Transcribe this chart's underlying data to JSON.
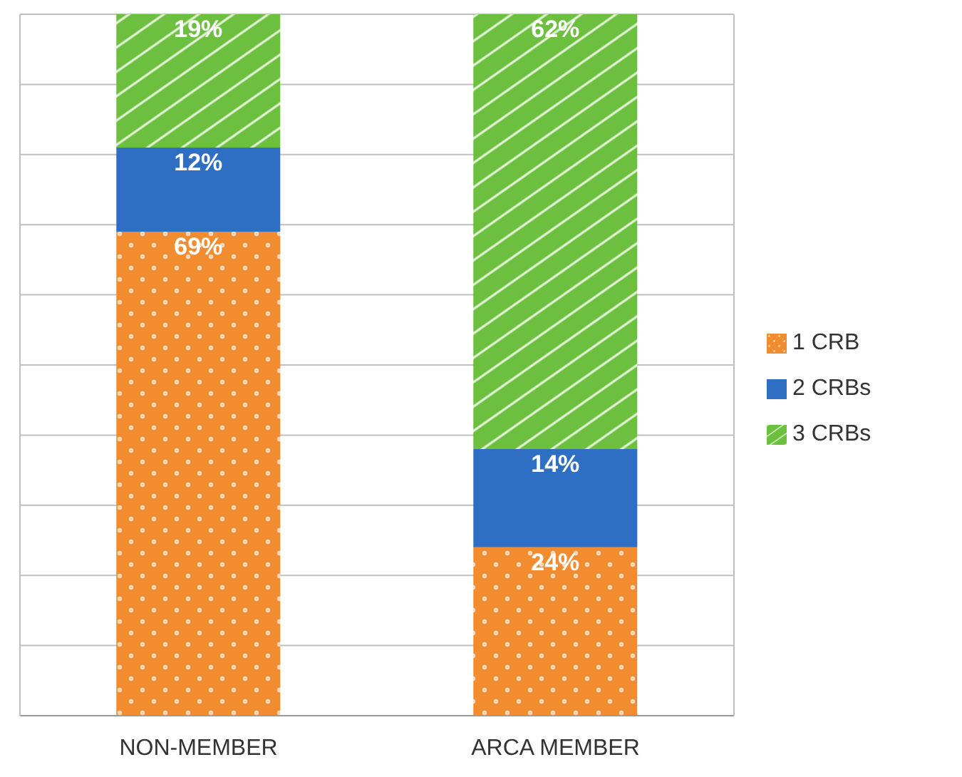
{
  "chart_data": {
    "type": "bar",
    "stacked": true,
    "categories": [
      "NON-MEMBER",
      "ARCA MEMBER"
    ],
    "series": [
      {
        "name": "1 CRB",
        "color": "#f28c30",
        "values": [
          69,
          24
        ],
        "value_labels": [
          "69%",
          "24%"
        ]
      },
      {
        "name": "2 CRBs",
        "color": "#2e6fc4",
        "values": [
          12,
          14
        ],
        "value_labels": [
          "12%",
          "14%"
        ]
      },
      {
        "name": "3 CRBs",
        "color": "#6cbf3f",
        "values": [
          19,
          62
        ],
        "value_labels": [
          "19%",
          "62%"
        ]
      }
    ],
    "ylim": [
      0,
      100
    ],
    "yticks": [
      {
        "value": 0,
        "label": null
      },
      {
        "value": 10,
        "label": null
      },
      {
        "value": 20,
        "label": null
      },
      {
        "value": 30,
        "label": null
      },
      {
        "value": 40,
        "label": null
      },
      {
        "value": 50,
        "label": null
      },
      {
        "value": 60,
        "label": null
      },
      {
        "value": 70,
        "label": null
      },
      {
        "value": 80,
        "label": null
      },
      {
        "value": 90,
        "label": null
      },
      {
        "value": 100,
        "label": null
      }
    ],
    "tick_labels": "x",
    "grid": "y",
    "legend": "right"
  }
}
